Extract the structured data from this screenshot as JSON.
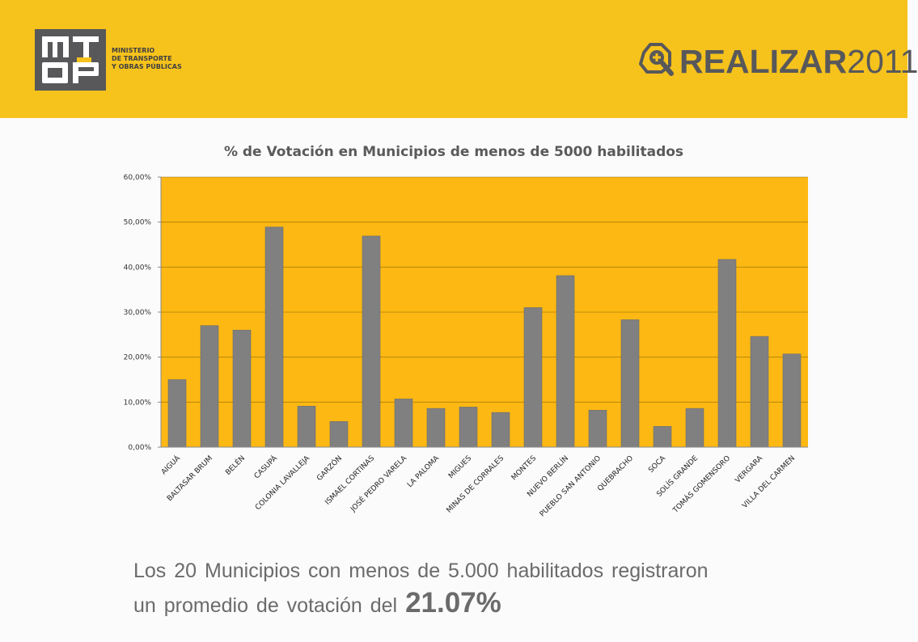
{
  "header": {
    "ministry_lines": [
      "MINISTERIO",
      "DE TRANSPORTE",
      "Y OBRAS PÚBLICAS"
    ],
    "logo_letters": "MTOP",
    "brand_word": "REALIZAR",
    "brand_year": "2011",
    "background_color": "#f6c21c",
    "logo_color": "#58585a"
  },
  "summary": {
    "line1": "Los 20 Municipios con menos de 5.000 habilitados registraron",
    "line2_prefix": "un promedio de votación del",
    "average": "21.07%"
  },
  "chart_data": {
    "type": "bar",
    "title": "% de Votación en Municipios de menos de 5000 habilitados",
    "xlabel": "",
    "ylabel": "",
    "ylim": [
      0,
      60
    ],
    "yticks": [
      0,
      10,
      20,
      30,
      40,
      50,
      60
    ],
    "ytick_labels": [
      "0,00%",
      "10,00%",
      "20,00%",
      "30,00%",
      "40,00%",
      "50,00%",
      "60,00%"
    ],
    "grid": true,
    "legend": "none",
    "plot_background": "#fdb813",
    "bar_color": "#808080",
    "categories": [
      "AIGUÁ",
      "BALTASAR BRUM",
      "BELÉN",
      "CASUPÁ",
      "COLONIA LAVALLEJA",
      "GARZÓN",
      "ISMAEL CORTINAS",
      "JOSÉ PEDRO VARELA",
      "LA PALOMA",
      "MIGUES",
      "MINAS DE CORRALES",
      "MONTES",
      "NUEVO BERLÍN",
      "PUEBLO SAN ANTONIO",
      "QUEBRACHO",
      "SOCA",
      "SOLÍS GRANDE",
      "TOMÁS GOMENSORO",
      "VERGARA",
      "VILLA DEL CARMEN"
    ],
    "values": [
      15.0,
      27.0,
      26.0,
      48.9,
      9.1,
      5.7,
      46.9,
      10.7,
      8.6,
      8.9,
      7.7,
      31.0,
      38.1,
      8.2,
      28.3,
      4.6,
      8.6,
      41.7,
      24.6,
      20.7
    ]
  }
}
